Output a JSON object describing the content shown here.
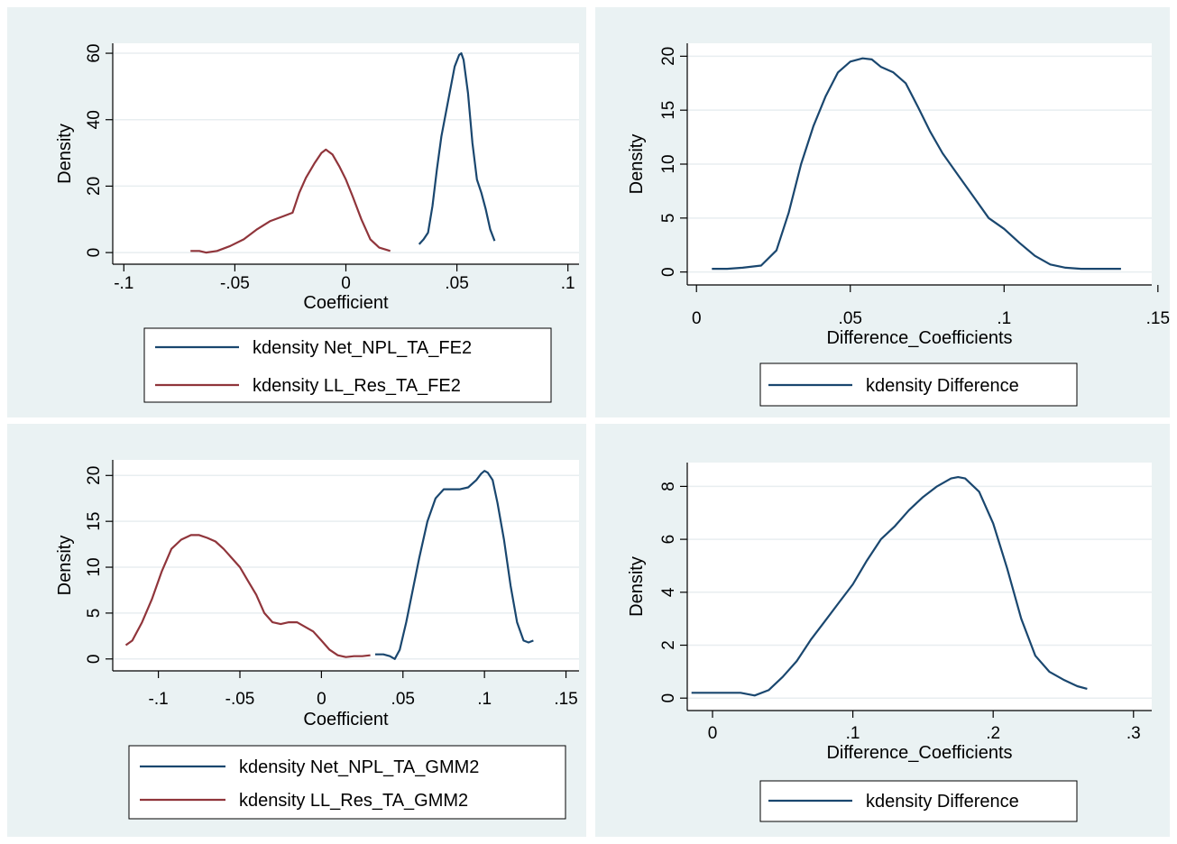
{
  "colors": {
    "outer_bg": "#eaf2f3",
    "plot_bg": "#ffffff",
    "grid": "#e8eef0",
    "series_blue": "#1a476f",
    "series_red": "#90353b"
  },
  "chart_data": [
    {
      "type": "line",
      "ylabel": "Density",
      "xlabel": "Coefficient",
      "xlim": [
        -0.105,
        0.105
      ],
      "ylim": [
        -3.5,
        63
      ],
      "xticks": [
        -0.1,
        -0.05,
        0,
        0.05,
        0.1
      ],
      "xtick_labels": [
        "-.1",
        "-.05",
        "0",
        ".05",
        ".1"
      ],
      "yticks": [
        0,
        20,
        40,
        60
      ],
      "ytick_labels": [
        "0",
        "20",
        "40",
        "60"
      ],
      "grid": true,
      "legend_position": "bottom",
      "series": [
        {
          "name": "kdensity Net_NPL_TA_FE2",
          "color": "#1a476f",
          "x": [
            0.033,
            0.035,
            0.037,
            0.039,
            0.041,
            0.043,
            0.045,
            0.047,
            0.049,
            0.051,
            0.052,
            0.053,
            0.055,
            0.057,
            0.059,
            0.061,
            0.063,
            0.065,
            0.067
          ],
          "y": [
            2.5,
            4,
            6,
            14,
            25,
            35,
            42,
            49,
            56,
            59.5,
            60,
            58,
            48,
            33,
            22,
            18,
            13,
            7,
            3.5
          ]
        },
        {
          "name": "kdensity LL_Res_TA_FE2",
          "color": "#90353b",
          "x": [
            -0.07,
            -0.066,
            -0.063,
            -0.058,
            -0.052,
            -0.046,
            -0.04,
            -0.034,
            -0.028,
            -0.024,
            -0.021,
            -0.018,
            -0.014,
            -0.011,
            -0.009,
            -0.006,
            -0.003,
            0,
            0.003,
            0.007,
            0.011,
            0.015,
            0.02
          ],
          "y": [
            0.5,
            0.5,
            0,
            0.5,
            2,
            4,
            7,
            9.5,
            11,
            12,
            18,
            22.5,
            27,
            30,
            31,
            29.5,
            26,
            22,
            17,
            10,
            4,
            1.5,
            0.5
          ]
        }
      ]
    },
    {
      "type": "line",
      "ylabel": "Density",
      "xlabel": "Difference_Coefficients",
      "xlim": [
        -0.003,
        0.148
      ],
      "ylim": [
        -1.2,
        21.2
      ],
      "xticks": [
        0,
        0.05,
        0.1,
        0.15
      ],
      "xtick_labels": [
        "0",
        ".05",
        ".1",
        ".15"
      ],
      "yticks": [
        0,
        5,
        10,
        15,
        20
      ],
      "ytick_labels": [
        "0",
        "5",
        "10",
        "15",
        "20"
      ],
      "grid": true,
      "legend_position": "bottom",
      "series": [
        {
          "name": "kdensity Difference",
          "color": "#1a476f",
          "x": [
            0.005,
            0.01,
            0.015,
            0.021,
            0.026,
            0.03,
            0.034,
            0.038,
            0.042,
            0.046,
            0.05,
            0.054,
            0.057,
            0.06,
            0.064,
            0.068,
            0.072,
            0.076,
            0.08,
            0.085,
            0.09,
            0.095,
            0.1,
            0.105,
            0.11,
            0.115,
            0.12,
            0.125,
            0.13,
            0.138
          ],
          "y": [
            0.3,
            0.3,
            0.4,
            0.6,
            2,
            5.5,
            10,
            13.5,
            16.3,
            18.5,
            19.5,
            19.8,
            19.7,
            19,
            18.5,
            17.5,
            15.3,
            13,
            11,
            9,
            7,
            5,
            4,
            2.7,
            1.5,
            0.7,
            0.4,
            0.3,
            0.3,
            0.3
          ]
        }
      ]
    },
    {
      "type": "line",
      "ylabel": "Density",
      "xlabel": "Coefficient",
      "xlim": [
        -0.128,
        0.158
      ],
      "ylim": [
        -1.3,
        21.7
      ],
      "xticks": [
        -0.1,
        -0.05,
        0,
        0.05,
        0.1,
        0.15
      ],
      "xtick_labels": [
        "-.1",
        "-.05",
        "0",
        ".05",
        ".1",
        ".15"
      ],
      "yticks": [
        0,
        5,
        10,
        15,
        20
      ],
      "ytick_labels": [
        "0",
        "5",
        "10",
        "15",
        "20"
      ],
      "grid": true,
      "legend_position": "bottom",
      "series": [
        {
          "name": "kdensity Net_NPL_TA_GMM2",
          "color": "#1a476f",
          "x": [
            0.033,
            0.038,
            0.042,
            0.045,
            0.048,
            0.052,
            0.056,
            0.06,
            0.065,
            0.07,
            0.075,
            0.08,
            0.085,
            0.09,
            0.095,
            0.098,
            0.1,
            0.102,
            0.105,
            0.108,
            0.112,
            0.116,
            0.12,
            0.124,
            0.127,
            0.13
          ],
          "y": [
            0.5,
            0.5,
            0.3,
            0,
            1,
            4,
            7.5,
            11,
            15,
            17.5,
            18.5,
            18.5,
            18.5,
            18.7,
            19.5,
            20.2,
            20.5,
            20.3,
            19.5,
            17,
            13,
            8,
            4,
            2,
            1.8,
            2
          ]
        },
        {
          "name": "kdensity LL_Res_TA_GMM2",
          "color": "#90353b",
          "x": [
            -0.12,
            -0.116,
            -0.11,
            -0.104,
            -0.098,
            -0.092,
            -0.086,
            -0.08,
            -0.075,
            -0.07,
            -0.065,
            -0.06,
            -0.055,
            -0.05,
            -0.045,
            -0.04,
            -0.035,
            -0.03,
            -0.025,
            -0.02,
            -0.015,
            -0.01,
            -0.005,
            0,
            0.005,
            0.01,
            0.015,
            0.02,
            0.025,
            0.03
          ],
          "y": [
            1.5,
            2,
            4,
            6.5,
            9.5,
            12,
            13,
            13.5,
            13.5,
            13.2,
            12.8,
            12,
            11,
            10,
            8.5,
            7,
            5,
            4,
            3.8,
            4,
            4,
            3.5,
            3,
            2,
            1,
            0.4,
            0.2,
            0.3,
            0.3,
            0.4
          ]
        }
      ]
    },
    {
      "type": "line",
      "ylabel": "Density",
      "xlabel": "Difference_Coefficients",
      "xlim": [
        -0.018,
        0.313
      ],
      "ylim": [
        -0.47,
        8.9
      ],
      "xticks": [
        0,
        0.1,
        0.2,
        0.3
      ],
      "xtick_labels": [
        "0",
        ".1",
        ".2",
        ".3"
      ],
      "yticks": [
        0,
        2,
        4,
        6,
        8
      ],
      "ytick_labels": [
        "0",
        "2",
        "4",
        "6",
        "8"
      ],
      "grid": true,
      "legend_position": "bottom",
      "series": [
        {
          "name": "kdensity Difference",
          "color": "#1a476f",
          "x": [
            -0.015,
            0,
            0.02,
            0.03,
            0.04,
            0.05,
            0.06,
            0.07,
            0.08,
            0.09,
            0.1,
            0.11,
            0.12,
            0.13,
            0.14,
            0.15,
            0.16,
            0.17,
            0.175,
            0.18,
            0.19,
            0.2,
            0.21,
            0.22,
            0.23,
            0.24,
            0.25,
            0.26,
            0.267
          ],
          "y": [
            0.2,
            0.2,
            0.2,
            0.1,
            0.3,
            0.8,
            1.4,
            2.2,
            2.9,
            3.6,
            4.3,
            5.2,
            6,
            6.5,
            7.1,
            7.6,
            8,
            8.3,
            8.35,
            8.3,
            7.8,
            6.6,
            4.9,
            3,
            1.6,
            1,
            0.7,
            0.45,
            0.35
          ]
        }
      ]
    }
  ]
}
